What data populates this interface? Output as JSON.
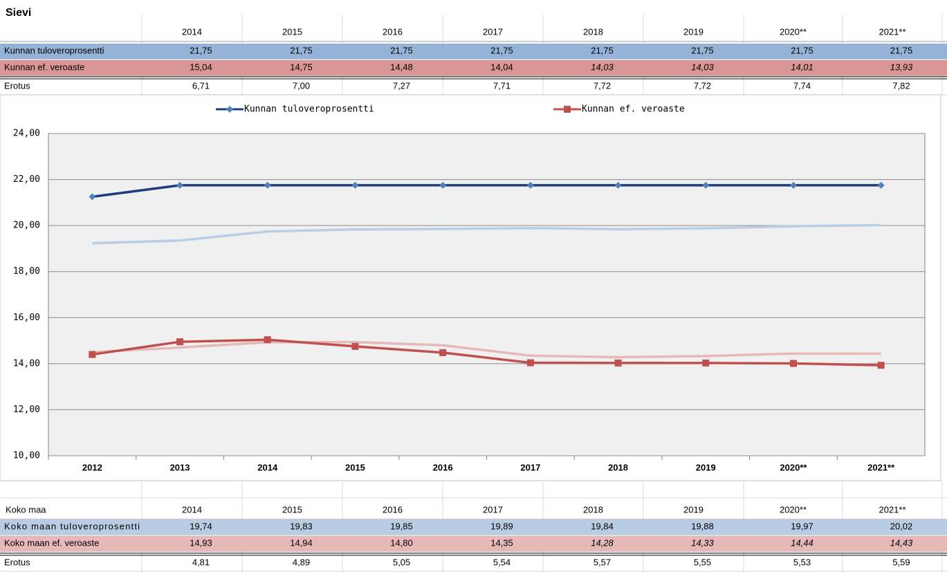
{
  "top": {
    "title": "Sievi",
    "years": [
      "2014",
      "2015",
      "2016",
      "2017",
      "2018",
      "2019",
      "2020**",
      "2021**"
    ],
    "rows": [
      {
        "label": "Kunnan tuloveroprosentti",
        "values": [
          "21,75",
          "21,75",
          "21,75",
          "21,75",
          "21,75",
          "21,75",
          "21,75",
          "21,75"
        ]
      },
      {
        "label": "Kunnan ef. veroaste",
        "values": [
          "15,04",
          "14,75",
          "14,48",
          "14,04",
          "14,03",
          "14,03",
          "14,01",
          "13,93"
        ]
      },
      {
        "label": "Erotus",
        "values": [
          "6,71",
          "7,00",
          "7,27",
          "7,71",
          "7,72",
          "7,72",
          "7,74",
          "7,82"
        ]
      }
    ]
  },
  "chart_data": {
    "type": "line",
    "categories": [
      "2012",
      "2013",
      "2014",
      "2015",
      "2016",
      "2017",
      "2018",
      "2019",
      "2020**",
      "2021**"
    ],
    "series": [
      {
        "name": "Kunnan tuloveroprosentti",
        "color": "#1f3d7a",
        "marker_color": "#4f81bd",
        "marker": "diamond",
        "values": [
          21.25,
          21.75,
          21.75,
          21.75,
          21.75,
          21.75,
          21.75,
          21.75,
          21.75,
          21.75
        ]
      },
      {
        "name": "Kunnan ef. veroaste",
        "color": "#c0504d",
        "marker_color": "#c0504d",
        "marker": "square",
        "values": [
          14.4,
          14.95,
          15.04,
          14.75,
          14.48,
          14.04,
          14.03,
          14.03,
          14.01,
          13.93
        ]
      },
      {
        "color": "#b9cde5",
        "values": [
          19.23,
          19.35,
          19.74,
          19.83,
          19.85,
          19.89,
          19.84,
          19.88,
          19.97,
          20.02
        ]
      },
      {
        "color": "#e6b9b8",
        "values": [
          14.5,
          14.7,
          14.93,
          14.94,
          14.8,
          14.35,
          14.28,
          14.33,
          14.44,
          14.43
        ]
      }
    ],
    "ylim": [
      10,
      24
    ],
    "yticks": [
      {
        "value": 10,
        "label": "10,00"
      },
      {
        "value": 12,
        "label": "12,00"
      },
      {
        "value": 14,
        "label": "14,00"
      },
      {
        "value": 16,
        "label": "16,00"
      },
      {
        "value": 18,
        "label": "18,00"
      },
      {
        "value": 20,
        "label": "20,00"
      },
      {
        "value": 22,
        "label": "22,00"
      },
      {
        "value": 24,
        "label": "24,00"
      }
    ],
    "grid": true,
    "legend": "top"
  },
  "bottom": {
    "title": "Koko maa",
    "years": [
      "2014",
      "2015",
      "2016",
      "2017",
      "2018",
      "2019",
      "2020**",
      "2021**"
    ],
    "rows": [
      {
        "label": "Koko maan tuloveroprosentti",
        "values": [
          "19,74",
          "19,83",
          "19,85",
          "19,89",
          "19,84",
          "19,88",
          "19,97",
          "20,02"
        ]
      },
      {
        "label": "Koko maan ef. veroaste",
        "values": [
          "14,93",
          "14,94",
          "14,80",
          "14,35",
          "14,28",
          "14,33",
          "14,44",
          "14,43"
        ]
      },
      {
        "label": "Erotus",
        "values": [
          "4,81",
          "4,89",
          "5,05",
          "5,54",
          "5,57",
          "5,55",
          "5,53",
          "5,59"
        ]
      }
    ]
  }
}
